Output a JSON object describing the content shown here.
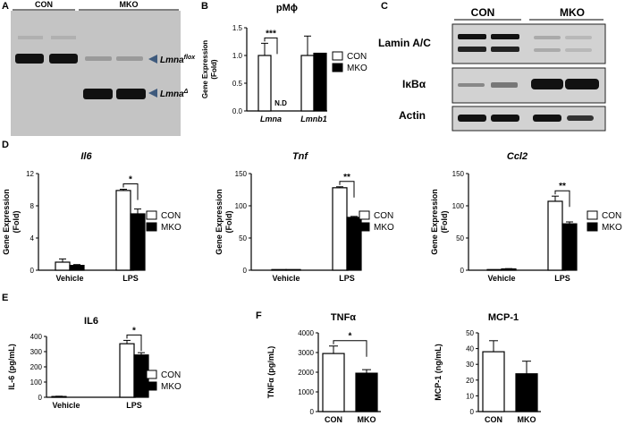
{
  "panels": {
    "A": {
      "letter": "A",
      "header_left": "CON",
      "header_right": "MKO",
      "band_top_label": "Lmna",
      "band_top_sup": "flox",
      "band_bottom_label": "Lmna",
      "band_bottom_sup": "Δ"
    },
    "C": {
      "letter": "C",
      "header_left": "CON",
      "header_right": "MKO",
      "rows": [
        "Lamin A/C",
        "IκBα",
        "Actin"
      ]
    },
    "B": {
      "letter": "B"
    },
    "D": {
      "letter": "D"
    },
    "E": {
      "letter": "E"
    },
    "F": {
      "letter": "F"
    }
  },
  "legend": {
    "con": "CON",
    "mko": "MKO"
  },
  "colors": {
    "con": "#ffffff",
    "mko": "#000000",
    "blot_bg": "#d2d2d2",
    "gel_bg": "#c8c8c8",
    "arrow": "#3e5a7d"
  },
  "chart_data": [
    {
      "id": "B",
      "type": "bar",
      "title": "pMϕ",
      "ylabel": "Gene Expression (Fold)",
      "categories": [
        "Lmna",
        "Lmnb1"
      ],
      "ylim": [
        0,
        1.5
      ],
      "yticks": [
        "0.0",
        "0.5",
        "1.0",
        "1.5"
      ],
      "series": [
        {
          "name": "CON",
          "values": [
            1.0,
            1.0
          ],
          "errors": [
            0.22,
            0.35
          ]
        },
        {
          "name": "MKO",
          "values": [
            0,
            1.04
          ],
          "errors": [
            0,
            0
          ]
        }
      ],
      "annotations": [
        {
          "text": "***",
          "between": "Lmna"
        },
        {
          "text": "N.D",
          "at": "Lmna MKO"
        }
      ]
    },
    {
      "id": "D1",
      "type": "bar",
      "title": "Il6",
      "ylabel": "Gene Expression (Fold)",
      "categories": [
        "Vehicle",
        "LPS"
      ],
      "ylim": [
        0,
        12
      ],
      "yticks": [
        "0",
        "4",
        "8",
        "12"
      ],
      "series": [
        {
          "name": "CON",
          "values": [
            1.0,
            9.9
          ],
          "errors": [
            0.4,
            0.15
          ]
        },
        {
          "name": "MKO",
          "values": [
            0.6,
            7.0
          ],
          "errors": [
            0.1,
            0.6
          ]
        }
      ],
      "annotations": [
        {
          "text": "*",
          "between": "LPS"
        }
      ]
    },
    {
      "id": "D2",
      "type": "bar",
      "title": "Tnf",
      "ylabel": "Gene Expression (Fold)",
      "categories": [
        "Vehicle",
        "LPS"
      ],
      "ylim": [
        0,
        150
      ],
      "yticks": [
        "0",
        "50",
        "100",
        "150"
      ],
      "series": [
        {
          "name": "CON",
          "values": [
            1,
            128
          ],
          "errors": [
            0,
            1.5
          ]
        },
        {
          "name": "MKO",
          "values": [
            1,
            82
          ],
          "errors": [
            0,
            1.5
          ]
        }
      ],
      "annotations": [
        {
          "text": "**",
          "between": "LPS"
        }
      ]
    },
    {
      "id": "D3",
      "type": "bar",
      "title": "Ccl2",
      "ylabel": "Gene Expression (Fold)",
      "categories": [
        "Vehicle",
        "LPS"
      ],
      "ylim": [
        0,
        150
      ],
      "yticks": [
        "0",
        "50",
        "100",
        "150"
      ],
      "series": [
        {
          "name": "CON",
          "values": [
            1,
            107
          ],
          "errors": [
            0,
            8
          ]
        },
        {
          "name": "MKO",
          "values": [
            2,
            72
          ],
          "errors": [
            0.5,
            3
          ]
        }
      ],
      "annotations": [
        {
          "text": "**",
          "between": "LPS"
        }
      ]
    },
    {
      "id": "E",
      "type": "bar",
      "title": "IL6",
      "ylabel": "IL-6 (pg/mL)",
      "categories": [
        "Vehicle",
        "LPS"
      ],
      "ylim": [
        0,
        400
      ],
      "yticks": [
        "0",
        "100",
        "200",
        "300",
        "400"
      ],
      "series": [
        {
          "name": "CON",
          "values": [
            5,
            352
          ],
          "errors": [
            2,
            22
          ]
        },
        {
          "name": "MKO",
          "values": [
            0,
            278
          ],
          "errors": [
            0,
            15
          ]
        }
      ],
      "annotations": [
        {
          "text": "*",
          "between": "LPS"
        }
      ]
    },
    {
      "id": "F1",
      "type": "bar",
      "title": "TNFα",
      "ylabel": "TNFα (pg/mL)",
      "categories": [
        "CON",
        "MKO"
      ],
      "ylim": [
        0,
        4000
      ],
      "yticks": [
        "0",
        "1000",
        "2000",
        "3000",
        "4000"
      ],
      "series": [
        {
          "name": "CON",
          "values": [
            2950,
            null
          ],
          "errors": [
            380,
            0
          ]
        },
        {
          "name": "MKO",
          "values": [
            null,
            1950
          ],
          "errors": [
            0,
            180
          ]
        }
      ],
      "annotations": [
        {
          "text": "*",
          "between": "all"
        }
      ]
    },
    {
      "id": "F2",
      "type": "bar",
      "title": "MCP-1",
      "ylabel": "MCP-1 (ng/mL)",
      "categories": [
        "CON",
        "MKO"
      ],
      "ylim": [
        0,
        50
      ],
      "yticks": [
        "0",
        "10",
        "20",
        "30",
        "40",
        "50"
      ],
      "series": [
        {
          "name": "CON",
          "values": [
            38,
            null
          ],
          "errors": [
            7,
            0
          ]
        },
        {
          "name": "MKO",
          "values": [
            null,
            24
          ],
          "errors": [
            0,
            8
          ]
        }
      ],
      "annotations": []
    }
  ]
}
